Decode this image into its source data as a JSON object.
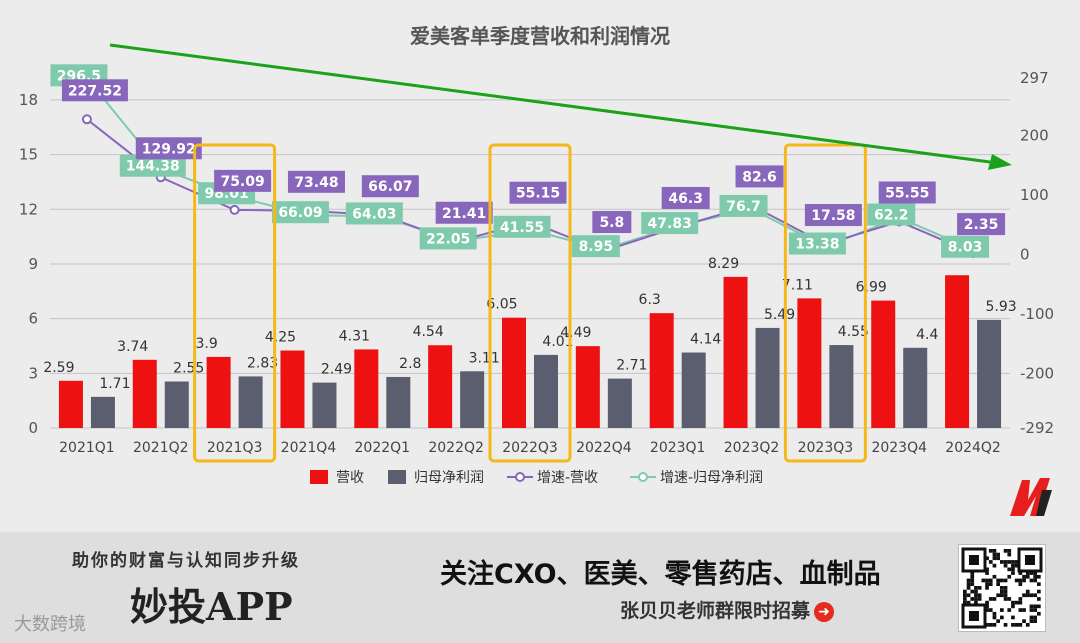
{
  "chart_data": {
    "type": "bar",
    "title": "爱美客单季度营收和利润情况",
    "categories": [
      "2021Q1",
      "2021Q2",
      "2021Q3",
      "2021Q4",
      "2022Q1",
      "2022Q2",
      "2022Q3",
      "2022Q4",
      "2023Q1",
      "2023Q2",
      "2023Q3",
      "2023Q4",
      "2024Q2"
    ],
    "series": [
      {
        "name": "营收",
        "kind": "bar",
        "color": "#ee1111",
        "values": [
          2.59,
          3.74,
          3.9,
          4.25,
          4.31,
          4.54,
          6.05,
          4.49,
          6.3,
          8.29,
          7.11,
          6.99,
          8.38
        ]
      },
      {
        "name": "归母净利润",
        "kind": "bar",
        "color": "#5a5e6e",
        "values": [
          1.71,
          2.55,
          2.83,
          2.49,
          2.8,
          3.11,
          4.01,
          2.71,
          4.14,
          5.49,
          4.55,
          4.4,
          5.93
        ]
      },
      {
        "name": "增速-营收",
        "kind": "line",
        "color": "#8866bb",
        "values": [
          227.52,
          129.92,
          75.09,
          73.48,
          66.07,
          21.41,
          55.15,
          5.8,
          46.3,
          82.6,
          17.58,
          55.55,
          2.35
        ]
      },
      {
        "name": "增速-归母净利润",
        "kind": "line",
        "color": "#7fc9ac",
        "values": [
          296.5,
          144.38,
          98.01,
          66.09,
          64.03,
          22.05,
          41.55,
          8.95,
          47.83,
          76.7,
          13.38,
          62.2,
          8.03
        ]
      }
    ],
    "bar_labels": [
      "2.59",
      "3.74",
      "3.9",
      "4.25",
      "4.31",
      "4.54",
      "6.05",
      "4.49",
      "6.3",
      "8.29",
      "7.11",
      "6.99",
      "",
      "1.71",
      "2.55",
      "2.83",
      "2.49",
      "2.8",
      "3.11",
      "4.01",
      "2.71",
      "4.14",
      "5.49",
      "4.55",
      "4.4",
      "5.93"
    ],
    "rev_growth_labels": [
      "227.52",
      "129.92",
      "75.09",
      "73.48",
      "66.07",
      "21.41",
      "55.15",
      "5.8",
      "46.3",
      "82.6",
      "17.58",
      "55.55",
      "2.35"
    ],
    "profit_growth_labels": [
      "296.5",
      "144.38",
      "98.01",
      "66.09",
      "64.03",
      "22.05",
      "41.55",
      "8.95",
      "47.83",
      "76.7",
      "13.38",
      "62.2",
      "8.03"
    ],
    "y_left": {
      "min": 0,
      "max": 19.2,
      "ticks": [
        0,
        3,
        6,
        9,
        12,
        15,
        18
      ]
    },
    "y_right": {
      "min": -292,
      "max": 297,
      "ticks": [
        -292,
        -200,
        -100,
        0,
        100,
        200,
        297
      ]
    },
    "highlighted_categories": [
      "2021Q3",
      "2022Q3",
      "2023Q3"
    ],
    "trend_arrow": "downward green arrow across top",
    "grid": true,
    "legend_position": "bottom"
  },
  "footer": {
    "slogan": "助你的财富与认知同步升级",
    "app_name": "妙投APP",
    "follow_text": "关注CXO、医美、零售药店、血制品",
    "group_text": "张贝贝老师群限时招募",
    "watermark": "大数跨境"
  },
  "colors": {
    "highlight": "#f5b817",
    "arrow": "#1aa31a",
    "revenue": "#ee1111",
    "profit": "#5a5e6e",
    "rev_growth": "#8866bb",
    "profit_growth": "#7fc9ac"
  }
}
